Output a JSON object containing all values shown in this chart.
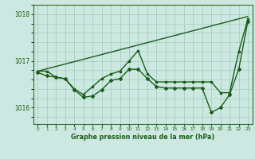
{
  "title": "Graphe pression niveau de la mer (hPa)",
  "xlabel_hours": [
    0,
    1,
    2,
    3,
    4,
    5,
    6,
    7,
    8,
    9,
    10,
    11,
    12,
    13,
    14,
    15,
    16,
    17,
    18,
    19,
    20,
    21,
    22,
    23
  ],
  "line1_straight": {
    "x": [
      0,
      23
    ],
    "y": [
      1016.78,
      1017.95
    ],
    "color": "#1a5c1a",
    "lw": 1.0
  },
  "line2_zigzag": {
    "x": [
      0,
      1,
      2,
      3,
      4,
      5,
      6,
      7,
      8,
      9,
      10,
      11,
      12,
      13,
      14,
      15,
      16,
      17,
      18,
      19,
      20,
      21,
      22,
      23
    ],
    "y": [
      1016.78,
      1016.78,
      1016.65,
      1016.62,
      1016.4,
      1016.28,
      1016.45,
      1016.62,
      1016.72,
      1016.78,
      1017.0,
      1017.22,
      1016.72,
      1016.55,
      1016.55,
      1016.55,
      1016.55,
      1016.55,
      1016.55,
      1016.55,
      1016.32,
      1016.32,
      1017.2,
      1017.9
    ],
    "color": "#1a5c1a",
    "lw": 1.0
  },
  "line3_low": {
    "x": [
      0,
      1,
      2,
      3,
      4,
      5,
      6,
      7,
      8,
      9,
      10,
      11,
      12,
      13,
      14,
      15,
      16,
      17,
      18,
      19,
      20,
      21,
      22,
      23
    ],
    "y": [
      1016.75,
      1016.68,
      1016.65,
      1016.62,
      1016.38,
      1016.22,
      1016.25,
      1016.38,
      1016.58,
      1016.62,
      1016.82,
      1016.82,
      1016.62,
      1016.45,
      1016.42,
      1016.42,
      1016.42,
      1016.42,
      1016.42,
      1015.9,
      1016.0,
      1016.28,
      1016.82,
      1017.85
    ],
    "color": "#1a5c1a",
    "lw": 1.0
  },
  "bg_color": "#cce8e0",
  "grid_color": "#99ccbb",
  "axis_color": "#2d6e2d",
  "text_color": "#1a5c1a",
  "ylim": [
    1015.65,
    1018.2
  ],
  "yticks": [
    1016.0,
    1017.0,
    1018.0
  ],
  "xlim": [
    -0.5,
    23.5
  ]
}
